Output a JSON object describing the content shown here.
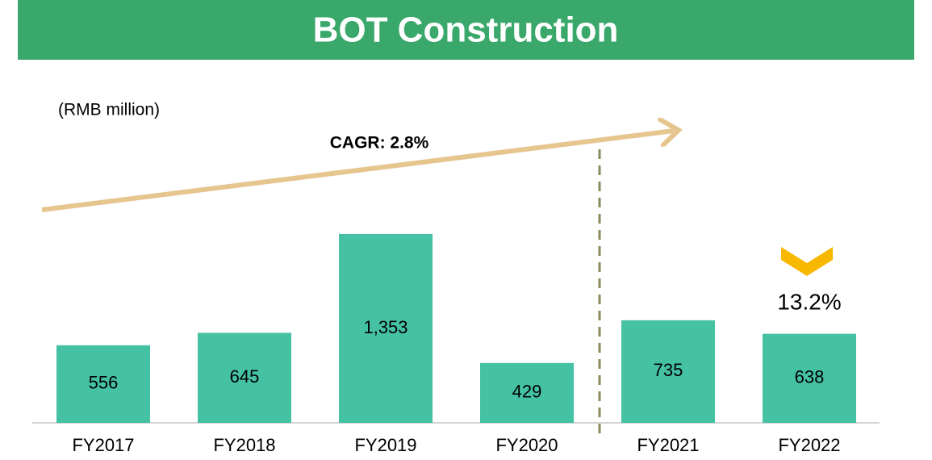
{
  "chart_data": {
    "type": "bar",
    "title": "BOT Construction",
    "unit_label": "(RMB million)",
    "annotations": [
      "CAGR: 2.8%",
      "13.2%"
    ],
    "categories": [
      "FY2017",
      "FY2018",
      "FY2019",
      "FY2020",
      "FY2021",
      "FY2022"
    ],
    "values": [
      556,
      645,
      1353,
      429,
      735,
      638
    ],
    "value_labels": [
      "556",
      "645",
      "1,353",
      "429",
      "735",
      "638"
    ],
    "color": "#45c1a4"
  }
}
